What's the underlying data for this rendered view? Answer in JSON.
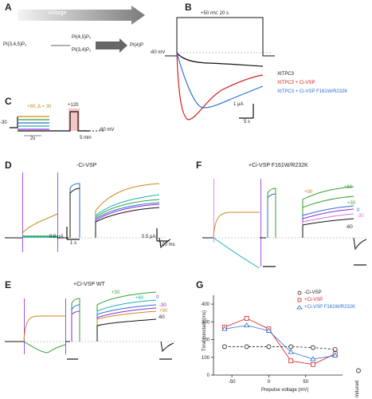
{
  "panel_labels": {
    "a": "A",
    "b": "B",
    "c": "C",
    "d": "D",
    "e": "E",
    "f": "F",
    "g": "G"
  },
  "panel_a": {
    "voltage_label": "Voltage",
    "pip2": "PI(3,4,5)P₃",
    "pi45p2": "PI(4,5)P₂",
    "pi34p2": "PI(3,4)P₂",
    "pi4p": "PI(4)P"
  },
  "panel_b": {
    "step_label": "+50 mV, 20 s",
    "holding_label": "-60 mV",
    "legend": [
      "XtTPC3",
      "XtTPC3 + Ci-VSP",
      "XtTPC3 + Ci-VSP F161W/R232K"
    ],
    "scale_current": "1 μA",
    "scale_time": "5 s",
    "colors": {
      "black": "#111111",
      "red": "#d62020",
      "blue": "#2a6fd6"
    }
  },
  "panel_c": {
    "prepulse_label": "+80, Δ = 30",
    "holding_label": "-30",
    "test_label": "+120",
    "duration_label": "2s",
    "return_label": "-60 mV",
    "interval_label": "5 min",
    "highlight_color": "#f5c6c6"
  },
  "panel_d": {
    "title": "-Ci-VSP",
    "scale_left": "0.5 μA",
    "time_left": "1 s",
    "scale_right": "0.5 μA",
    "time_right": "100 ms"
  },
  "panel_e": {
    "title": "+Ci-VSP WT",
    "trace_labels": [
      "+30",
      "+60",
      "0",
      "-30",
      "+90",
      "-60"
    ]
  },
  "panel_f": {
    "title": "+Ci-VSP F161W/R232K",
    "trace_labels": [
      "+90",
      "+60",
      "+30",
      "0",
      "-30",
      "-60"
    ]
  },
  "panel_g": {
    "legend": [
      "-Ci-VSP",
      "+Ci-VSP",
      "+Ci-VSP F161W/R232K"
    ],
    "ylabel": "Time constant (ms)",
    "xlabel": "Prepulse voltage (mV)",
    "induced_label": "Induced",
    "colors": [
      "#222222",
      "#d62020",
      "#2a6fd6"
    ]
  },
  "chart_data": {
    "type": "scatter",
    "title": "",
    "xlabel": "Prepulse voltage (mV)",
    "ylabel": "Time constant (ms)",
    "xlim": [
      -75,
      100
    ],
    "ylim": [
      0,
      450
    ],
    "x_ticks": [
      -50,
      0,
      50
    ],
    "y_ticks": [
      0,
      100,
      200,
      300,
      400
    ],
    "legend_position": "top-right",
    "grid": false,
    "x": [
      -60,
      -30,
      0,
      30,
      60,
      90
    ],
    "series": [
      {
        "name": "-Ci-VSP",
        "marker": "circle",
        "values": [
          160,
          160,
          160,
          160,
          155,
          145
        ]
      },
      {
        "name": "+Ci-VSP",
        "marker": "square",
        "values": [
          270,
          320,
          260,
          80,
          60,
          120
        ]
      },
      {
        "name": "+Ci-VSP F161W/R232K",
        "marker": "triangle",
        "values": [
          260,
          280,
          250,
          130,
          90,
          110
        ]
      }
    ],
    "induced_marker": {
      "label": "Induced",
      "value": 25
    }
  }
}
